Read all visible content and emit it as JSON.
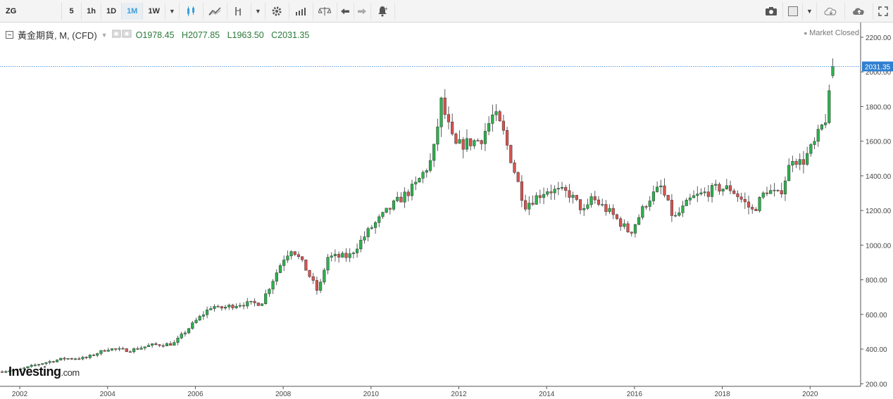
{
  "toolbar": {
    "symbol": "ZG",
    "intervals": [
      "5",
      "1h",
      "1D",
      "1M",
      "1W"
    ],
    "active_interval": "1M"
  },
  "legend": {
    "title": "黃金期貨, M, (CFD)",
    "open_label": "O",
    "open": "1978.45",
    "high_label": "H",
    "high": "2077.85",
    "low_label": "L",
    "low": "1963.50",
    "close_label": "C",
    "close": "2031.35"
  },
  "status": {
    "market": "Market Closed"
  },
  "branding": {
    "logo": "Investing",
    "logo_suffix": ".com"
  },
  "colors": {
    "up": "#2bb24c",
    "down": "#d9534f",
    "price_line": "#4a90e2",
    "price_label_bg": "#2f7fd0"
  },
  "chart_data": {
    "type": "candlestick",
    "interval": "monthly",
    "x_range": [
      2001.55,
      2021.15
    ],
    "ylim": [
      185,
      2285
    ],
    "y_ticks": [
      200,
      400,
      600,
      800,
      1000,
      1200,
      1400,
      1600,
      1800,
      2000,
      2200
    ],
    "y_tick_labels": [
      "200.00",
      "400.00",
      "600.00",
      "800.00",
      "1000.00",
      "1200.00",
      "1400.00",
      "1600.00",
      "1800.00",
      "2000.00",
      "2200.00"
    ],
    "x_ticks": [
      "2002",
      "2004",
      "2006",
      "2008",
      "2010",
      "2012",
      "2014",
      "2016",
      "2018",
      "2020"
    ],
    "last_price": "2031.35",
    "close_anchors": [
      [
        2001.6,
        272
      ],
      [
        2002.0,
        282
      ],
      [
        2002.5,
        318
      ],
      [
        2003.0,
        345
      ],
      [
        2003.5,
        348
      ],
      [
        2004.0,
        402
      ],
      [
        2004.5,
        392
      ],
      [
        2005.0,
        423
      ],
      [
        2005.5,
        430
      ],
      [
        2006.0,
        560
      ],
      [
        2006.4,
        654
      ],
      [
        2006.5,
        632
      ],
      [
        2007.0,
        660
      ],
      [
        2007.5,
        665
      ],
      [
        2008.0,
        920
      ],
      [
        2008.2,
        985
      ],
      [
        2008.5,
        870
      ],
      [
        2008.8,
        725
      ],
      [
        2009.0,
        930
      ],
      [
        2009.5,
        935
      ],
      [
        2010.0,
        1100
      ],
      [
        2010.5,
        1230
      ],
      [
        2011.0,
        1340
      ],
      [
        2011.4,
        1500
      ],
      [
        2011.6,
        1825
      ],
      [
        2011.9,
        1570
      ],
      [
        2012.5,
        1610
      ],
      [
        2012.8,
        1760
      ],
      [
        2013.0,
        1660
      ],
      [
        2013.3,
        1400
      ],
      [
        2013.5,
        1230
      ],
      [
        2014.0,
        1320
      ],
      [
        2014.5,
        1300
      ],
      [
        2014.9,
        1180
      ],
      [
        2015.0,
        1280
      ],
      [
        2015.5,
        1175
      ],
      [
        2015.9,
        1070
      ],
      [
        2016.3,
        1260
      ],
      [
        2016.6,
        1335
      ],
      [
        2016.9,
        1150
      ],
      [
        2017.3,
        1270
      ],
      [
        2017.9,
        1330
      ],
      [
        2018.2,
        1325
      ],
      [
        2018.7,
        1195
      ],
      [
        2019.0,
        1320
      ],
      [
        2019.3,
        1285
      ],
      [
        2019.6,
        1510
      ],
      [
        2019.8,
        1470
      ],
      [
        2020.1,
        1585
      ],
      [
        2020.4,
        1760
      ],
      [
        2020.5,
        2031.35
      ]
    ]
  }
}
